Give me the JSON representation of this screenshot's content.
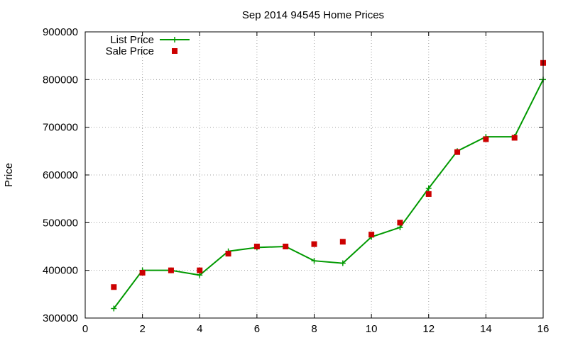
{
  "chart_data": {
    "type": "line",
    "title": "Sep 2014 94545 Home Prices",
    "xlabel": "",
    "ylabel": "Price",
    "xlim": [
      0,
      16
    ],
    "ylim": [
      300000,
      900000
    ],
    "xticks": [
      0,
      2,
      4,
      6,
      8,
      10,
      12,
      14,
      16
    ],
    "yticks": [
      300000,
      400000,
      500000,
      600000,
      700000,
      800000,
      900000
    ],
    "grid": true,
    "legend_position": "top-left",
    "series": [
      {
        "name": "List Price",
        "style": "line-plus",
        "color": "#009900",
        "x": [
          1,
          2,
          3,
          4,
          5,
          6,
          7,
          8,
          9,
          10,
          11,
          12,
          13,
          14,
          15,
          16
        ],
        "y": [
          320000,
          400000,
          400000,
          390000,
          440000,
          448000,
          450000,
          420000,
          415000,
          470000,
          490000,
          572000,
          650000,
          680000,
          680000,
          800000
        ]
      },
      {
        "name": "Sale Price",
        "style": "square-points",
        "color": "#cc0000",
        "x": [
          1,
          2,
          3,
          4,
          5,
          6,
          7,
          8,
          9,
          10,
          11,
          12,
          13,
          14,
          15,
          16
        ],
        "y": [
          365000,
          395000,
          400000,
          400000,
          435000,
          450000,
          450000,
          455000,
          460000,
          475000,
          500000,
          560000,
          648000,
          675000,
          678000,
          835000
        ]
      }
    ]
  }
}
